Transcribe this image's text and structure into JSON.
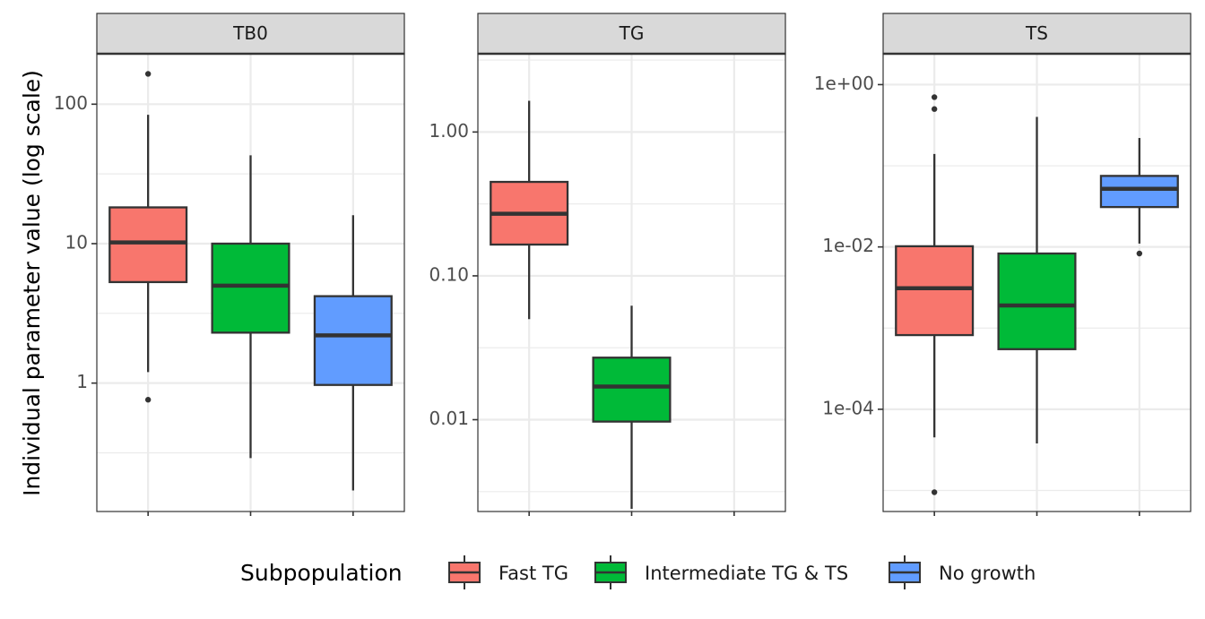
{
  "chart_data": {
    "type": "box",
    "ylabel": "Individual parameter value (log scale)",
    "yscale": "log",
    "grid": true,
    "legend": {
      "title": "Subpopulation",
      "position": "bottom",
      "entries": [
        {
          "name": "Fast TG",
          "color": "#F8766D"
        },
        {
          "name": "Intermediate TG & TS",
          "color": "#00BA38"
        },
        {
          "name": "No growth",
          "color": "#619CFF"
        }
      ]
    },
    "panels": [
      {
        "title": "TB0",
        "ylim": [
          0.12,
          230
        ],
        "yticks": [
          1,
          10,
          100
        ],
        "yticklabels": [
          "1",
          "10",
          "100"
        ],
        "boxes": [
          {
            "group": "Fast TG",
            "whisker_low": 1.2,
            "q1": 5.3,
            "median": 10.2,
            "q3": 18.2,
            "whisker_high": 84,
            "outliers": [
              165,
              0.76
            ]
          },
          {
            "group": "Intermediate TG & TS",
            "whisker_low": 0.29,
            "q1": 2.3,
            "median": 5.0,
            "q3": 10.0,
            "whisker_high": 43,
            "outliers": []
          },
          {
            "group": "No growth",
            "whisker_low": 0.17,
            "q1": 0.97,
            "median": 2.2,
            "q3": 4.2,
            "whisker_high": 16,
            "outliers": []
          }
        ]
      },
      {
        "title": "TG",
        "ylim": [
          0.0023,
          3.5
        ],
        "yticks": [
          0.01,
          0.1,
          1
        ],
        "yticklabels": [
          "0.01",
          "0.10",
          "1.00"
        ],
        "boxes": [
          {
            "group": "Fast TG",
            "whisker_low": 0.05,
            "q1": 0.165,
            "median": 0.27,
            "q3": 0.45,
            "whisker_high": 1.65,
            "outliers": []
          },
          {
            "group": "Intermediate TG & TS",
            "whisker_low": 0.0024,
            "q1": 0.0097,
            "median": 0.017,
            "q3": 0.027,
            "whisker_high": 0.062,
            "outliers": []
          }
        ]
      },
      {
        "title": "TS",
        "ylim": [
          5.5e-06,
          2.4
        ],
        "yticks": [
          0.0001,
          0.01,
          1
        ],
        "yticklabels": [
          "1e-04",
          "1e-02",
          "1e+00"
        ],
        "boxes": [
          {
            "group": "Fast TG",
            "whisker_low": 4.5e-05,
            "q1": 0.00082,
            "median": 0.0031,
            "q3": 0.0102,
            "whisker_high": 0.14,
            "outliers": [
              0.7,
              0.5,
              9.5e-06
            ]
          },
          {
            "group": "Intermediate TG & TS",
            "whisker_low": 3.8e-05,
            "q1": 0.00055,
            "median": 0.0019,
            "q3": 0.0083,
            "whisker_high": 0.4,
            "outliers": []
          },
          {
            "group": "No growth",
            "whisker_low": 0.011,
            "q1": 0.031,
            "median": 0.052,
            "q3": 0.075,
            "whisker_high": 0.22,
            "outliers": [
              0.0083
            ]
          }
        ]
      }
    ]
  }
}
